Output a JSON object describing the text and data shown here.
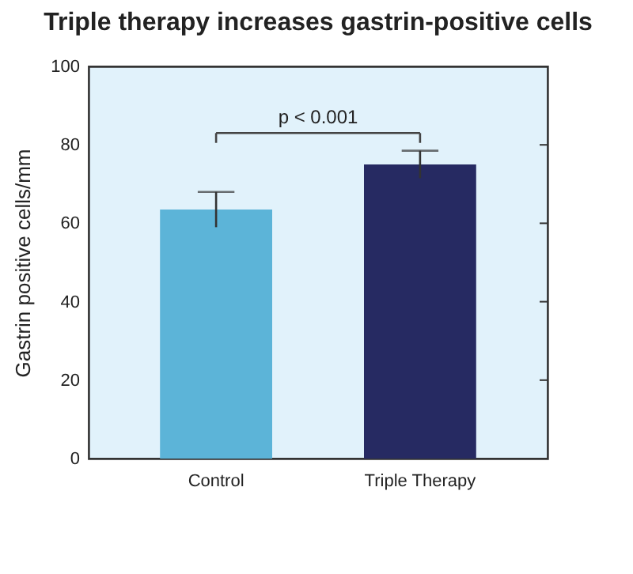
{
  "chart_data": {
    "type": "bar",
    "title": "Triple therapy increases gastrin-positive cells",
    "ylabel": "Gastrin positive cells/mm",
    "categories": [
      "Control",
      "Triple Therapy"
    ],
    "values": [
      63.5,
      75
    ],
    "colors": [
      "#5cb4d8",
      "#262a62"
    ],
    "errors": [
      4.5,
      3.5
    ],
    "ylim": [
      0,
      100
    ],
    "yticks": [
      0,
      20,
      40,
      60,
      80,
      100
    ],
    "annotations": [
      "p < 0.001"
    ]
  }
}
